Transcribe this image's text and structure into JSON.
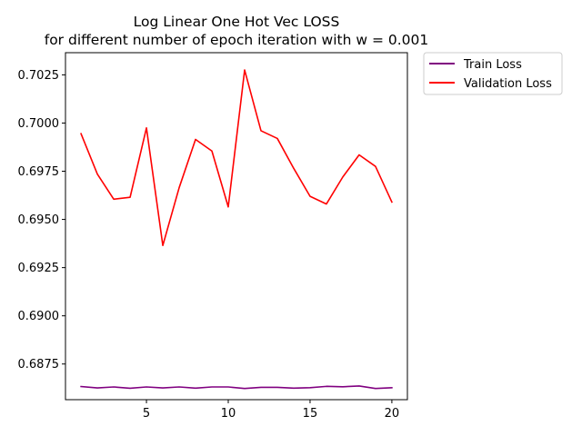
{
  "chart_data": {
    "type": "line",
    "title": "Log Linear One Hot Vec LOSS",
    "subtitle": "for different number of epoch iteration with w = 0.001",
    "xlabel": "",
    "ylabel": "",
    "xlim": [
      0.05,
      20.95
    ],
    "ylim": [
      0.68565,
      0.70365
    ],
    "x_ticks": [
      5,
      10,
      15,
      20
    ],
    "y_ticks": [
      0.6875,
      0.69,
      0.6925,
      0.695,
      0.6975,
      0.7,
      0.7025
    ],
    "x_tick_labels": [
      "5",
      "10",
      "15",
      "20"
    ],
    "y_tick_labels": [
      "0.6875",
      "0.6900",
      "0.6925",
      "0.6950",
      "0.6975",
      "0.7000",
      "0.7025"
    ],
    "grid": false,
    "legend_position": "outside-top-right",
    "x": [
      1,
      2,
      3,
      4,
      5,
      6,
      7,
      8,
      9,
      10,
      11,
      12,
      13,
      14,
      15,
      16,
      17,
      18,
      19,
      20
    ],
    "series": [
      {
        "name": "Train Loss",
        "color": "#800080",
        "values": [
          0.68633,
          0.68626,
          0.68631,
          0.68624,
          0.68631,
          0.68626,
          0.68631,
          0.68625,
          0.68631,
          0.68631,
          0.68623,
          0.68629,
          0.68629,
          0.68625,
          0.68627,
          0.68634,
          0.68632,
          0.68636,
          0.68623,
          0.68627
        ]
      },
      {
        "name": "Validation Loss",
        "color": "#ff0000",
        "values": [
          0.69945,
          0.69735,
          0.69605,
          0.69615,
          0.69975,
          0.69365,
          0.69665,
          0.69915,
          0.69855,
          0.69565,
          0.70275,
          0.6996,
          0.6992,
          0.69765,
          0.6962,
          0.6958,
          0.6972,
          0.69835,
          0.69775,
          0.6959
        ]
      }
    ]
  }
}
